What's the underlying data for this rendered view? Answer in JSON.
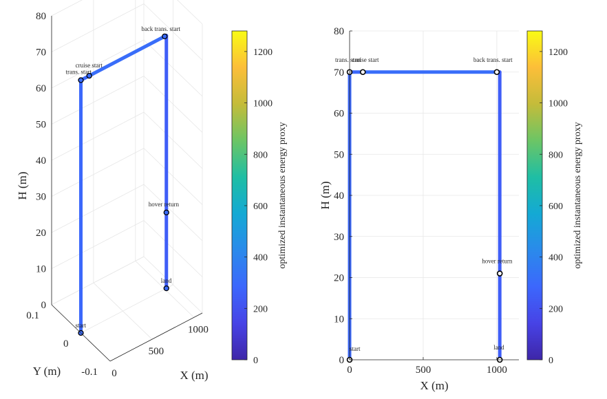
{
  "colormap": {
    "stops": [
      "#3e26a8",
      "#4743e6",
      "#3c67fc",
      "#2a8aeb",
      "#14a9d4",
      "#1fbea4",
      "#6cc565",
      "#c4bc3a",
      "#fcbe39",
      "#f9fb14"
    ]
  },
  "chart_data": [
    {
      "type": "line3d",
      "xlabel": "X (m)",
      "ylabel": "Y (m)",
      "zlabel": "H (m)",
      "xlim": [
        0,
        1100
      ],
      "ylim": [
        -0.1,
        0.1
      ],
      "zlim": [
        0,
        80
      ],
      "xticks": [
        0,
        500,
        1000
      ],
      "yticks": [
        -0.1,
        0,
        0.1
      ],
      "zticks": [
        0,
        10,
        20,
        30,
        40,
        50,
        60,
        70,
        80
      ],
      "ytick_labels": [
        "-0.1",
        "0",
        "0.1"
      ],
      "grid": true,
      "path": {
        "x": [
          0,
          0,
          100,
          1000,
          1020,
          1020,
          1020
        ],
        "h": [
          0,
          70,
          70,
          70,
          70,
          21,
          0
        ],
        "energy": [
          300,
          280,
          300,
          320,
          250,
          250,
          250
        ]
      },
      "markers": [
        {
          "label": "start",
          "x": 0,
          "h": 0
        },
        {
          "label": "trans. start",
          "x": 0,
          "h": 70
        },
        {
          "label": "cruise start",
          "x": 100,
          "h": 70
        },
        {
          "label": "back trans. start",
          "x": 1000,
          "h": 70
        },
        {
          "label": "hover return",
          "x": 1020,
          "h": 21
        },
        {
          "label": "land",
          "x": 1020,
          "h": 0
        }
      ],
      "colorbar": {
        "label": "optimized instantaneous energy proxy",
        "range": [
          0,
          1280
        ],
        "ticks": [
          0,
          200,
          400,
          600,
          800,
          1000,
          1200
        ]
      }
    },
    {
      "type": "line",
      "xlabel": "X (m)",
      "ylabel": "H (m)",
      "xlim": [
        0,
        1150
      ],
      "ylim": [
        0,
        80
      ],
      "xticks": [
        0,
        500,
        1000
      ],
      "yticks": [
        0,
        10,
        20,
        30,
        40,
        50,
        60,
        70,
        80
      ],
      "grid": true,
      "path": {
        "x": [
          0,
          0,
          90,
          1000,
          1020,
          1020,
          1020
        ],
        "h": [
          0,
          70,
          70,
          70,
          70,
          21,
          0
        ],
        "energy": [
          300,
          280,
          300,
          320,
          250,
          250,
          250
        ]
      },
      "markers": [
        {
          "label": "start",
          "x": 0,
          "h": 0
        },
        {
          "label": "trans. start",
          "x": 0,
          "h": 70
        },
        {
          "label": "cruise start",
          "x": 90,
          "h": 70
        },
        {
          "label": "back trans. start",
          "x": 1000,
          "h": 70
        },
        {
          "label": "hover return",
          "x": 1020,
          "h": 21
        },
        {
          "label": "land",
          "x": 1020,
          "h": 0
        }
      ],
      "colorbar": {
        "label": "optimized instantaneous energy proxy",
        "range": [
          0,
          1280
        ],
        "ticks": [
          0,
          200,
          400,
          600,
          800,
          1000,
          1200
        ]
      }
    }
  ]
}
